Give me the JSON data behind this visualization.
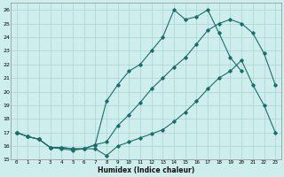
{
  "xlabel": "Humidex (Indice chaleur)",
  "bg_color": "#ceeeed",
  "grid_color": "#aad4d3",
  "line_color": "#1a6e6a",
  "xlim": [
    -0.5,
    23.5
  ],
  "ylim": [
    15,
    26.5
  ],
  "xticks": [
    0,
    1,
    2,
    3,
    4,
    5,
    6,
    7,
    8,
    9,
    10,
    11,
    12,
    13,
    14,
    15,
    16,
    17,
    18,
    19,
    20,
    21,
    22,
    23
  ],
  "yticks": [
    15,
    16,
    17,
    18,
    19,
    20,
    21,
    22,
    23,
    24,
    25,
    26
  ],
  "series1_x": [
    0,
    1,
    2,
    3,
    4,
    5,
    6,
    7,
    8,
    9,
    10,
    11,
    12,
    13,
    14,
    15,
    16,
    17,
    18,
    19,
    20,
    21,
    22,
    23
  ],
  "series1_y": [
    17.0,
    16.7,
    16.5,
    15.9,
    15.8,
    15.7,
    15.8,
    15.8,
    15.3,
    16.0,
    16.3,
    16.6,
    16.9,
    17.2,
    17.8,
    18.5,
    19.3,
    20.2,
    21.0,
    21.5,
    22.3,
    20.5,
    19.0,
    17.0
  ],
  "series2_x": [
    0,
    1,
    2,
    3,
    4,
    5,
    6,
    7,
    8,
    9,
    10,
    11,
    12,
    13,
    14,
    15,
    16,
    17,
    18,
    19,
    20,
    21,
    22,
    23
  ],
  "series2_y": [
    17.0,
    16.7,
    16.5,
    15.9,
    15.9,
    15.8,
    15.8,
    16.1,
    16.3,
    17.5,
    18.3,
    19.2,
    20.2,
    21.0,
    21.8,
    22.5,
    23.5,
    24.5,
    25.0,
    25.3,
    25.0,
    24.3,
    22.8,
    20.5
  ],
  "series3_x": [
    0,
    1,
    2,
    3,
    4,
    5,
    6,
    7,
    8,
    9,
    10,
    11,
    12,
    13,
    14,
    15,
    16,
    17,
    18,
    19,
    20,
    21,
    22,
    23
  ],
  "series3_y": [
    17.0,
    16.7,
    16.5,
    15.9,
    15.9,
    15.8,
    15.8,
    16.1,
    19.3,
    20.5,
    21.5,
    22.0,
    23.0,
    24.0,
    26.0,
    25.3,
    25.5,
    26.0,
    24.3,
    22.5,
    21.5,
    null,
    null,
    null
  ]
}
